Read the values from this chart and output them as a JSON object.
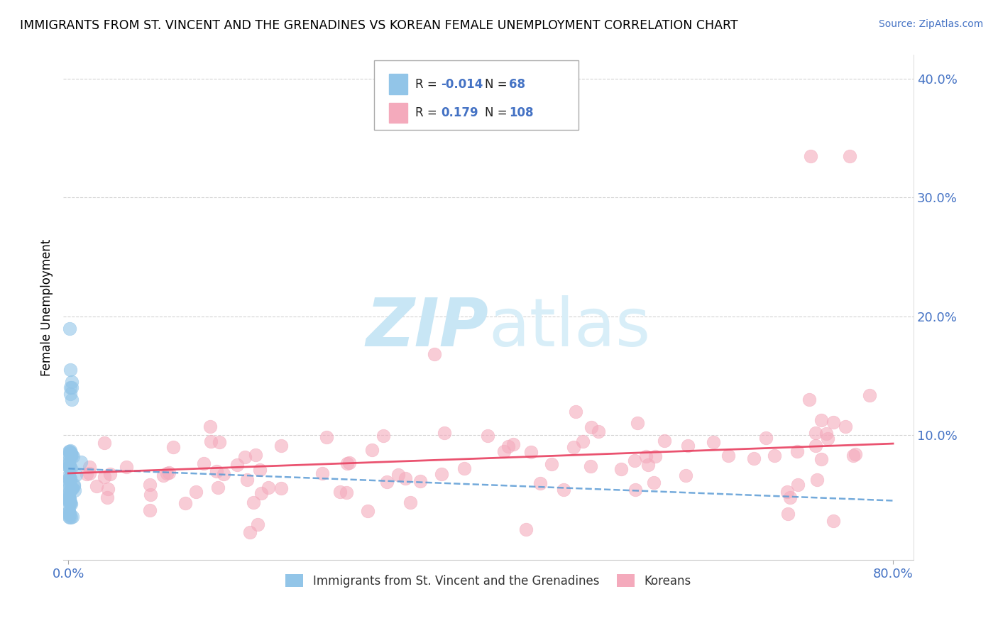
{
  "title": "IMMIGRANTS FROM ST. VINCENT AND THE GRENADINES VS KOREAN FEMALE UNEMPLOYMENT CORRELATION CHART",
  "source": "Source: ZipAtlas.com",
  "ylabel": "Female Unemployment",
  "ytick_vals": [
    0.1,
    0.2,
    0.3,
    0.4
  ],
  "ytick_labels": [
    "10.0%",
    "20.0%",
    "30.0%",
    "40.0%"
  ],
  "xlim": [
    0.0,
    0.8
  ],
  "ylim": [
    -0.005,
    0.42
  ],
  "blue_color": "#92C5E8",
  "pink_color": "#F4AABC",
  "trend_blue_color": "#5B9BD5",
  "trend_pink_color": "#E84060",
  "watermark_color": "#C8E6F5",
  "blue_label": "Immigrants from St. Vincent and the Grenadines",
  "korean_label": "Koreans",
  "legend_r1_val": "-0.014",
  "legend_n1_val": "68",
  "legend_r2_val": "0.179",
  "legend_n2_val": "108"
}
